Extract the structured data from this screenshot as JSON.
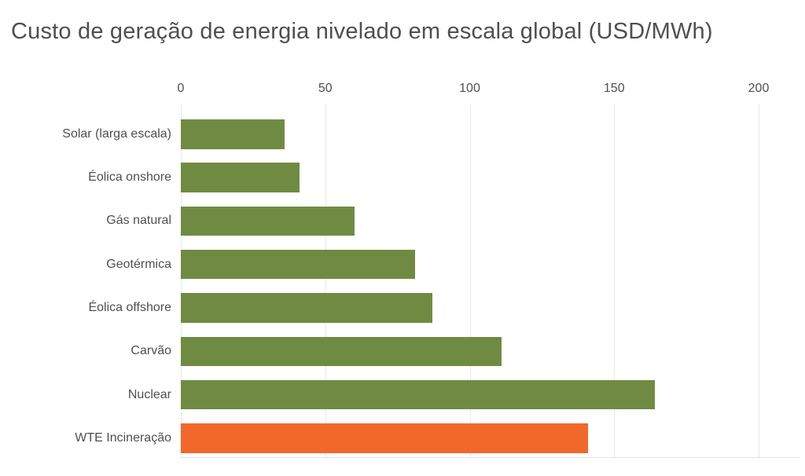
{
  "chart_data": {
    "type": "bar",
    "orientation": "horizontal",
    "title": "Custo de geração de energia nivelado em escala global (USD/MWh)",
    "categories": [
      "Solar (larga escala)",
      "Éolica onshore",
      "Gás natural",
      "Geotérmica",
      "Éolica offshore",
      "Carvão",
      "Nuclear",
      "WTE Incineração"
    ],
    "values": [
      36,
      41,
      60,
      81,
      87,
      111,
      164,
      141
    ],
    "bar_colors": [
      "#6f8b42",
      "#6f8b42",
      "#6f8b42",
      "#6f8b42",
      "#6f8b42",
      "#6f8b42",
      "#6f8b42",
      "#f2682b"
    ],
    "xlabel": "",
    "ylabel": "",
    "xlim": [
      0,
      200
    ],
    "x_ticks": [
      "0",
      "50",
      "100",
      "150",
      "200"
    ],
    "grid": "vertical-only",
    "legend": "none",
    "colors": {
      "default_bar": "#6f8b42",
      "highlight_bar": "#f2682b",
      "highlight_category": "WTE Incineração",
      "title_text": "#4f4f4f",
      "axis_text": "#4f4f4f",
      "gridline": "#e9e9e9",
      "axis_spine": "#e0e0e0",
      "background": "#ffffff"
    }
  }
}
